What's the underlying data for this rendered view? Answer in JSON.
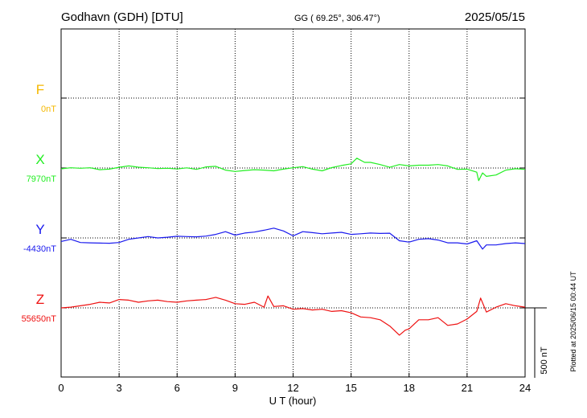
{
  "header": {
    "station": "Godhavn (GDH)  [DTU]",
    "coords": "GG ( 69.25°, 306.47°)",
    "date": "2025/05/15"
  },
  "footer": {
    "plotted_note": "Plotted at 2025/06/15 00:44 UT"
  },
  "chart_data": {
    "type": "line",
    "xlabel": "U T (hour)",
    "xlim": [
      0,
      24
    ],
    "xticks": [
      "0",
      "3",
      "6",
      "9",
      "12",
      "15",
      "18",
      "21",
      "24"
    ],
    "scale_bar_label": "500 nT",
    "scale_bar_nT": 500,
    "grid": true,
    "series": [
      {
        "name": "F",
        "baseline_label": "0nT",
        "baseline_nT": 0,
        "color": "#f5b800",
        "points": []
      },
      {
        "name": "X",
        "baseline_label": "7970nT",
        "baseline_nT": 7970,
        "color": "#22ee22",
        "points": [
          [
            0,
            7964
          ],
          [
            0.5,
            7972
          ],
          [
            1,
            7968
          ],
          [
            1.5,
            7972
          ],
          [
            2,
            7958
          ],
          [
            2.5,
            7962
          ],
          [
            3,
            7975
          ],
          [
            3.5,
            7985
          ],
          [
            4,
            7976
          ],
          [
            4.5,
            7972
          ],
          [
            5,
            7966
          ],
          [
            5.5,
            7968
          ],
          [
            6,
            7963
          ],
          [
            6.5,
            7971
          ],
          [
            7,
            7960
          ],
          [
            7.5,
            7978
          ],
          [
            8,
            7982
          ],
          [
            8.5,
            7955
          ],
          [
            9,
            7945
          ],
          [
            9.5,
            7952
          ],
          [
            10,
            7958
          ],
          [
            10.5,
            7955
          ],
          [
            11,
            7950
          ],
          [
            11.5,
            7962
          ],
          [
            12,
            7972
          ],
          [
            12.5,
            7980
          ],
          [
            13,
            7962
          ],
          [
            13.5,
            7950
          ],
          [
            14,
            7973
          ],
          [
            14.5,
            7988
          ],
          [
            15,
            8000
          ],
          [
            15.3,
            8040
          ],
          [
            15.7,
            8010
          ],
          [
            16,
            8010
          ],
          [
            16.5,
            7995
          ],
          [
            17,
            7975
          ],
          [
            17.5,
            7995
          ],
          [
            18,
            7985
          ],
          [
            18.5,
            7990
          ],
          [
            19,
            7990
          ],
          [
            19.5,
            7995
          ],
          [
            20,
            7985
          ],
          [
            20.5,
            7960
          ],
          [
            21,
            7962
          ],
          [
            21.5,
            7940
          ],
          [
            21.6,
            7880
          ],
          [
            21.8,
            7935
          ],
          [
            22,
            7910
          ],
          [
            22.5,
            7920
          ],
          [
            23,
            7955
          ],
          [
            23.5,
            7965
          ],
          [
            24,
            7960
          ]
        ]
      },
      {
        "name": "Y",
        "baseline_label": "-4430nT",
        "baseline_nT": -4430,
        "color": "#1a1aee",
        "points": [
          [
            0,
            -4455
          ],
          [
            0.5,
            -4440
          ],
          [
            1,
            -4463
          ],
          [
            1.5,
            -4465
          ],
          [
            2,
            -4467
          ],
          [
            2.5,
            -4468
          ],
          [
            3,
            -4463
          ],
          [
            3.5,
            -4440
          ],
          [
            4,
            -4430
          ],
          [
            4.5,
            -4420
          ],
          [
            5,
            -4430
          ],
          [
            5.5,
            -4425
          ],
          [
            6,
            -4418
          ],
          [
            6.5,
            -4420
          ],
          [
            7,
            -4422
          ],
          [
            7.5,
            -4417
          ],
          [
            8,
            -4405
          ],
          [
            8.5,
            -4385
          ],
          [
            9,
            -4410
          ],
          [
            9.5,
            -4395
          ],
          [
            10,
            -4388
          ],
          [
            10.5,
            -4375
          ],
          [
            11,
            -4360
          ],
          [
            11.5,
            -4380
          ],
          [
            12,
            -4415
          ],
          [
            12.5,
            -4385
          ],
          [
            13,
            -4392
          ],
          [
            13.5,
            -4400
          ],
          [
            14,
            -4395
          ],
          [
            14.5,
            -4390
          ],
          [
            15,
            -4405
          ],
          [
            15.5,
            -4400
          ],
          [
            16,
            -4395
          ],
          [
            16.5,
            -4398
          ],
          [
            17,
            -4396
          ],
          [
            17.5,
            -4450
          ],
          [
            18,
            -4460
          ],
          [
            18.5,
            -4440
          ],
          [
            19,
            -4435
          ],
          [
            19.5,
            -4445
          ],
          [
            20,
            -4465
          ],
          [
            20.5,
            -4465
          ],
          [
            21,
            -4473
          ],
          [
            21.5,
            -4450
          ],
          [
            21.8,
            -4510
          ],
          [
            22,
            -4480
          ],
          [
            22.5,
            -4480
          ],
          [
            23,
            -4470
          ],
          [
            23.5,
            -4465
          ],
          [
            24,
            -4470
          ]
        ]
      },
      {
        "name": "Z",
        "baseline_label": "55650nT",
        "baseline_nT": 55650,
        "color": "#ee1111",
        "points": [
          [
            0,
            55650
          ],
          [
            0.5,
            55655
          ],
          [
            1,
            55665
          ],
          [
            1.5,
            55675
          ],
          [
            2,
            55690
          ],
          [
            2.5,
            55685
          ],
          [
            3,
            55710
          ],
          [
            3.5,
            55705
          ],
          [
            4,
            55690
          ],
          [
            4.5,
            55700
          ],
          [
            5,
            55705
          ],
          [
            5.5,
            55695
          ],
          [
            6,
            55690
          ],
          [
            6.5,
            55700
          ],
          [
            7,
            55705
          ],
          [
            7.5,
            55710
          ],
          [
            8,
            55725
          ],
          [
            8.5,
            55705
          ],
          [
            9,
            55680
          ],
          [
            9.5,
            55675
          ],
          [
            10,
            55690
          ],
          [
            10.5,
            55655
          ],
          [
            10.7,
            55735
          ],
          [
            11,
            55660
          ],
          [
            11.5,
            55665
          ],
          [
            12,
            55640
          ],
          [
            12.5,
            55645
          ],
          [
            13,
            55635
          ],
          [
            13.5,
            55640
          ],
          [
            14,
            55625
          ],
          [
            14.5,
            55630
          ],
          [
            15,
            55615
          ],
          [
            15.5,
            55585
          ],
          [
            16,
            55580
          ],
          [
            16.5,
            55565
          ],
          [
            17,
            55520
          ],
          [
            17.5,
            55455
          ],
          [
            17.8,
            55490
          ],
          [
            18,
            55500
          ],
          [
            18.5,
            55565
          ],
          [
            19,
            55565
          ],
          [
            19.5,
            55580
          ],
          [
            20,
            55525
          ],
          [
            20.5,
            55535
          ],
          [
            21,
            55570
          ],
          [
            21.5,
            55625
          ],
          [
            21.7,
            55720
          ],
          [
            22,
            55620
          ],
          [
            22.5,
            55655
          ],
          [
            23,
            55680
          ],
          [
            23.5,
            55665
          ],
          [
            24,
            55655
          ]
        ]
      }
    ]
  }
}
